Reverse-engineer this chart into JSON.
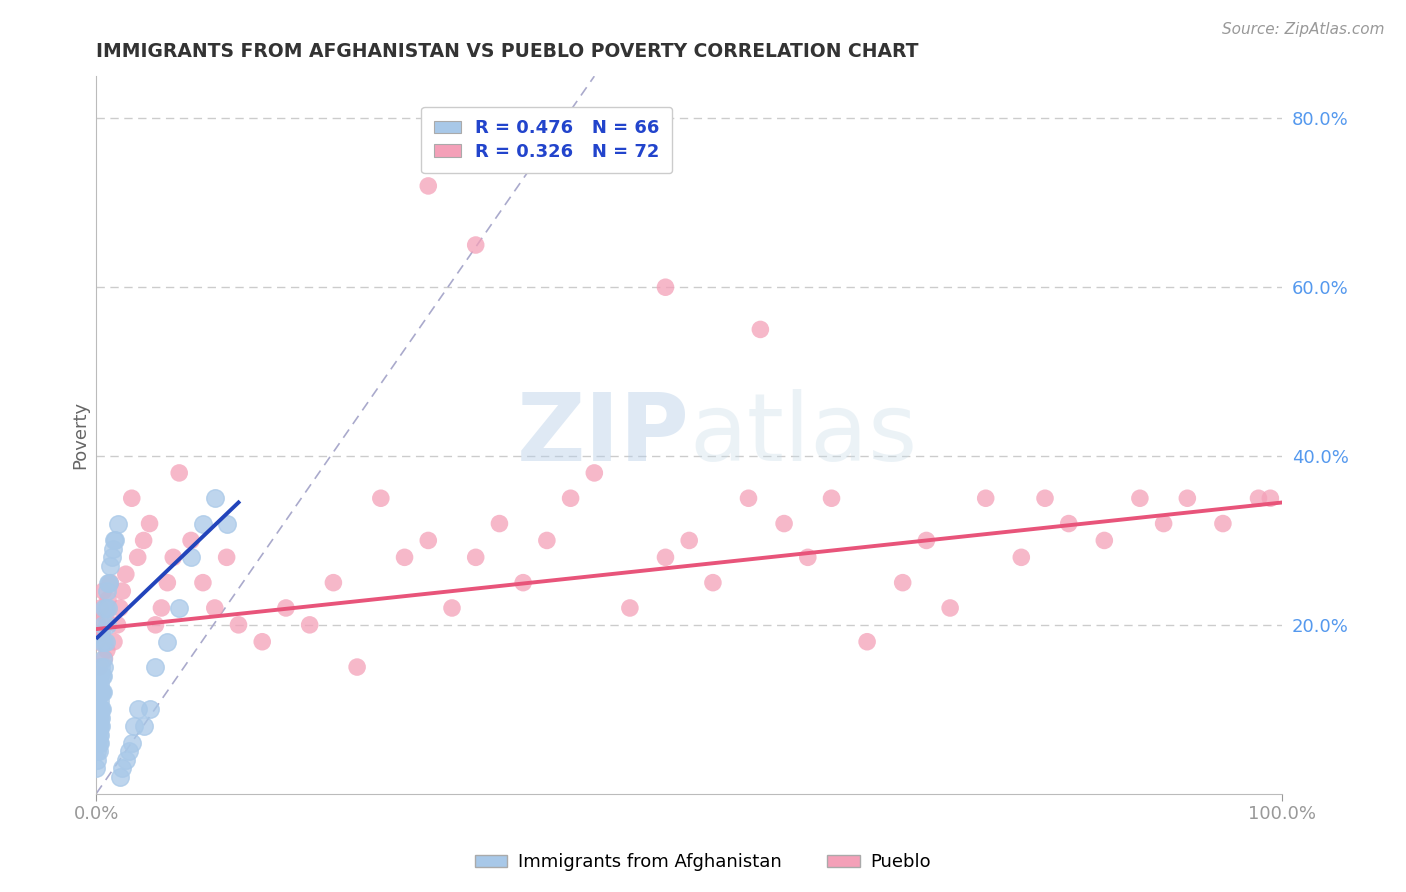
{
  "title": "IMMIGRANTS FROM AFGHANISTAN VS PUEBLO POVERTY CORRELATION CHART",
  "source": "Source: ZipAtlas.com",
  "ylabel": "Poverty",
  "xlim": [
    0,
    1.0
  ],
  "ylim": [
    0,
    0.85
  ],
  "ytick_labels": [
    "",
    "20.0%",
    "40.0%",
    "60.0%",
    "80.0%"
  ],
  "ytick_positions": [
    0.0,
    0.2,
    0.4,
    0.6,
    0.8
  ],
  "xtick_labels": [
    "0.0%",
    "100.0%"
  ],
  "xtick_positions": [
    0.0,
    1.0
  ],
  "legend1_r": "R = 0.476",
  "legend1_n": "N = 66",
  "legend2_r": "R = 0.326",
  "legend2_n": "N = 72",
  "blue_color": "#a8c8e8",
  "pink_color": "#f4a0b8",
  "blue_line_color": "#2244bb",
  "pink_line_color": "#e8547a",
  "watermark_zip": "ZIP",
  "watermark_atlas": "atlas",
  "background_color": "#ffffff",
  "grid_color": "#cccccc",
  "blue_scatter_x": [
    0.0,
    0.001,
    0.001,
    0.001,
    0.001,
    0.001,
    0.002,
    0.002,
    0.002,
    0.002,
    0.002,
    0.002,
    0.002,
    0.003,
    0.003,
    0.003,
    0.003,
    0.003,
    0.003,
    0.003,
    0.003,
    0.004,
    0.004,
    0.004,
    0.004,
    0.004,
    0.005,
    0.005,
    0.005,
    0.005,
    0.006,
    0.006,
    0.006,
    0.006,
    0.007,
    0.007,
    0.007,
    0.008,
    0.008,
    0.009,
    0.009,
    0.01,
    0.01,
    0.011,
    0.012,
    0.013,
    0.014,
    0.015,
    0.016,
    0.018,
    0.02,
    0.022,
    0.025,
    0.028,
    0.03,
    0.032,
    0.035,
    0.04,
    0.045,
    0.05,
    0.06,
    0.07,
    0.08,
    0.09,
    0.1,
    0.11
  ],
  "blue_scatter_y": [
    0.03,
    0.04,
    0.05,
    0.06,
    0.07,
    0.08,
    0.05,
    0.06,
    0.07,
    0.08,
    0.09,
    0.1,
    0.12,
    0.06,
    0.07,
    0.08,
    0.09,
    0.1,
    0.11,
    0.13,
    0.14,
    0.08,
    0.09,
    0.1,
    0.12,
    0.15,
    0.1,
    0.12,
    0.14,
    0.18,
    0.12,
    0.14,
    0.16,
    0.2,
    0.15,
    0.18,
    0.22,
    0.18,
    0.22,
    0.2,
    0.24,
    0.22,
    0.25,
    0.25,
    0.27,
    0.28,
    0.29,
    0.3,
    0.3,
    0.32,
    0.02,
    0.03,
    0.04,
    0.05,
    0.06,
    0.08,
    0.1,
    0.08,
    0.1,
    0.15,
    0.18,
    0.22,
    0.28,
    0.32,
    0.35,
    0.32
  ],
  "pink_scatter_x": [
    0.001,
    0.002,
    0.003,
    0.004,
    0.005,
    0.006,
    0.007,
    0.008,
    0.009,
    0.01,
    0.012,
    0.015,
    0.018,
    0.02,
    0.022,
    0.025,
    0.03,
    0.035,
    0.04,
    0.045,
    0.05,
    0.055,
    0.06,
    0.065,
    0.07,
    0.08,
    0.09,
    0.1,
    0.11,
    0.12,
    0.14,
    0.16,
    0.18,
    0.2,
    0.22,
    0.24,
    0.26,
    0.28,
    0.3,
    0.32,
    0.34,
    0.36,
    0.38,
    0.4,
    0.42,
    0.45,
    0.48,
    0.5,
    0.52,
    0.55,
    0.58,
    0.6,
    0.62,
    0.65,
    0.68,
    0.7,
    0.72,
    0.75,
    0.78,
    0.8,
    0.82,
    0.85,
    0.88,
    0.9,
    0.92,
    0.95,
    0.98,
    0.99,
    0.56,
    0.48,
    0.32,
    0.28
  ],
  "pink_scatter_y": [
    0.18,
    0.2,
    0.15,
    0.22,
    0.19,
    0.24,
    0.16,
    0.21,
    0.17,
    0.23,
    0.25,
    0.18,
    0.2,
    0.22,
    0.24,
    0.26,
    0.35,
    0.28,
    0.3,
    0.32,
    0.2,
    0.22,
    0.25,
    0.28,
    0.38,
    0.3,
    0.25,
    0.22,
    0.28,
    0.2,
    0.18,
    0.22,
    0.2,
    0.25,
    0.15,
    0.35,
    0.28,
    0.3,
    0.22,
    0.28,
    0.32,
    0.25,
    0.3,
    0.35,
    0.38,
    0.22,
    0.28,
    0.3,
    0.25,
    0.35,
    0.32,
    0.28,
    0.35,
    0.18,
    0.25,
    0.3,
    0.22,
    0.35,
    0.28,
    0.35,
    0.32,
    0.3,
    0.35,
    0.32,
    0.35,
    0.32,
    0.35,
    0.35,
    0.55,
    0.6,
    0.65,
    0.72
  ],
  "pink_line_x0": 0.0,
  "pink_line_y0": 0.195,
  "pink_line_x1": 1.0,
  "pink_line_y1": 0.345,
  "blue_line_x0": 0.001,
  "blue_line_y0": 0.185,
  "blue_line_x1": 0.12,
  "blue_line_y1": 0.345,
  "dash_line_x0": 0.0,
  "dash_line_y0": 0.0,
  "dash_line_x1": 0.42,
  "dash_line_y1": 0.85
}
